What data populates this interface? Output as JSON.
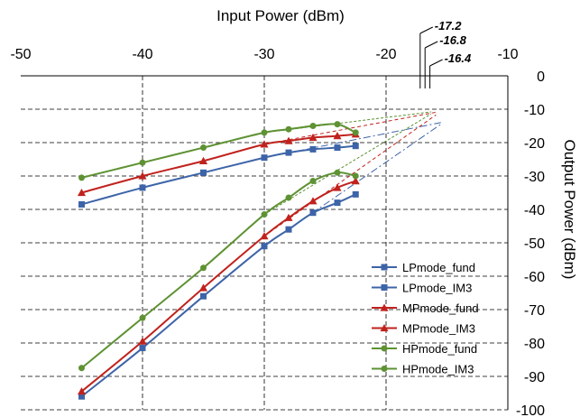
{
  "chart_data": {
    "type": "line",
    "title": "",
    "xlabel": "Input Power (dBm)",
    "ylabel": "Output Power (dBm)",
    "xlim": [
      -50,
      -10
    ],
    "ylim": [
      -100,
      0
    ],
    "x_axis_position": "top",
    "y_axis_position": "right",
    "x_ticks": [
      -50,
      -40,
      -30,
      -20,
      -10
    ],
    "y_ticks": [
      0,
      -10,
      -20,
      -30,
      -40,
      -50,
      -60,
      -70,
      -80,
      -90,
      -100
    ],
    "grid": "dashed",
    "legend_position": "bottom-right",
    "annotations": [
      "-17.2",
      "-16.8",
      "-16.4"
    ],
    "annotation_x_values": [
      -17.2,
      -16.8,
      -16.4
    ],
    "series": [
      {
        "name": "LPmode_fund",
        "color": "#3d64a8",
        "marker": "square",
        "x": [
          -45,
          -40,
          -35,
          -30,
          -28,
          -26,
          -24,
          -22.5
        ],
        "y": [
          -38.5,
          -33.5,
          -29,
          -24.5,
          -23,
          -22,
          -21.5,
          -21
        ]
      },
      {
        "name": "LPmode_IM3",
        "color": "#3d64a8",
        "marker": "square",
        "x": [
          -45,
          -40,
          -35,
          -30,
          -28,
          -26,
          -24,
          -22.5
        ],
        "y": [
          -96,
          -81.5,
          -66,
          -51,
          -46,
          -41,
          -38,
          -35.5
        ]
      },
      {
        "name": "MPmode_fund",
        "color": "#c0221d",
        "marker": "triangle",
        "x": [
          -45,
          -40,
          -35,
          -30,
          -28,
          -26,
          -24,
          -22.5
        ],
        "y": [
          -35,
          -30,
          -25.5,
          -20.5,
          -19.5,
          -18.5,
          -18,
          -17.5
        ]
      },
      {
        "name": "MPmode_IM3",
        "color": "#c0221d",
        "marker": "triangle",
        "x": [
          -45,
          -40,
          -35,
          -30,
          -28,
          -26,
          -24,
          -22.5
        ],
        "y": [
          -94.5,
          -79.5,
          -63.5,
          -48,
          -42.5,
          -37.5,
          -33.5,
          -31.5
        ]
      },
      {
        "name": "HPmode_fund",
        "color": "#5e9233",
        "marker": "circle",
        "x": [
          -45,
          -40,
          -35,
          -30,
          -28,
          -26,
          -24,
          -22.5
        ],
        "y": [
          -30.5,
          -26,
          -21.5,
          -17,
          -16,
          -15,
          -14.5,
          -17
        ]
      },
      {
        "name": "HPmode_IM3",
        "color": "#5e9233",
        "marker": "circle",
        "x": [
          -45,
          -40,
          -35,
          -30,
          -28,
          -26,
          -24,
          -22.5
        ],
        "y": [
          -87.5,
          -72.5,
          -57.5,
          -41.5,
          -36.5,
          -31.5,
          -29,
          -30
        ]
      }
    ]
  }
}
